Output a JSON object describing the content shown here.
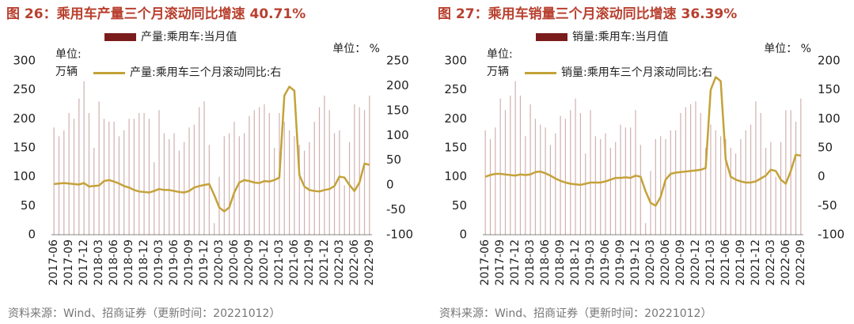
{
  "chart_data": [
    {
      "type": "combo",
      "title": "图 26：乘用车产量三个月滚动同比增速 40.71%",
      "y_label": [
        "单位:",
        "万辆"
      ],
      "y2_label": "单位：  %",
      "source": "资料来源：Wind、招商证券（更新时间：20221012）",
      "categories": [
        "2017-06",
        null,
        null,
        "2017-09",
        null,
        null,
        "2017-12",
        null,
        null,
        "2018-03",
        null,
        null,
        "2018-06",
        null,
        null,
        "2018-09",
        null,
        null,
        "2018-12",
        null,
        null,
        "2019-03",
        null,
        null,
        "2019-06",
        null,
        null,
        "2019-09",
        null,
        null,
        "2019-12",
        null,
        null,
        "2020-03",
        null,
        null,
        "2020-06",
        null,
        null,
        "2020-09",
        null,
        null,
        "2020-12",
        null,
        null,
        "2021-03",
        null,
        null,
        "2021-06",
        null,
        null,
        "2021-09",
        null,
        null,
        "2021-12",
        null,
        null,
        "2022-03",
        null,
        null,
        "2022-06",
        null,
        null,
        "2022-09"
      ],
      "series": [
        {
          "name": "产量:乘用车:当月值",
          "type": "bar",
          "color": "#7b1c1c",
          "values": [
            185,
            170,
            180,
            210,
            200,
            235,
            265,
            210,
            150,
            230,
            200,
            195,
            195,
            170,
            180,
            200,
            200,
            210,
            210,
            200,
            125,
            215,
            175,
            165,
            175,
            145,
            160,
            185,
            190,
            220,
            230,
            155,
            20,
            100,
            170,
            175,
            195,
            170,
            175,
            205,
            215,
            220,
            225,
            210,
            150,
            210,
            195,
            180,
            170,
            155,
            145,
            160,
            195,
            220,
            240,
            215,
            175,
            180,
            85,
            160,
            225,
            220,
            215,
            240
          ]
        },
        {
          "name": "产量:乘用车三个月滚动同比:右",
          "type": "line",
          "color": "#c4a239",
          "axis": "y2",
          "values": [
            2,
            3,
            4,
            3,
            2,
            1,
            4,
            -3,
            -2,
            -1,
            8,
            10,
            7,
            3,
            -2,
            -5,
            -10,
            -13,
            -14,
            -15,
            -12,
            -8,
            -10,
            -10,
            -12,
            -14,
            -15,
            -12,
            -5,
            -2,
            0,
            2,
            -20,
            -45,
            -53,
            -45,
            -15,
            5,
            10,
            8,
            5,
            4,
            8,
            7,
            10,
            15,
            180,
            198,
            190,
            20,
            -3,
            -10,
            -12,
            -13,
            -10,
            -8,
            -2,
            17,
            15,
            0,
            -12,
            5,
            43,
            40.71
          ]
        }
      ],
      "ylim": [
        0,
        300
      ],
      "yticks": [
        0,
        50,
        100,
        150,
        200,
        250,
        300
      ],
      "y2lim": [
        -100,
        250
      ],
      "y2ticks": [
        -100,
        -50,
        0,
        50,
        100,
        150,
        200,
        250
      ]
    },
    {
      "type": "combo",
      "title": "图 27：乘用车销量三个月滚动同比增速 36.39%",
      "y_label": [
        "单位:",
        "万辆"
      ],
      "y2_label": "单位：  %",
      "source": "资料来源：Wind、招商证券（更新时间：20221012）",
      "categories": [
        "2017-06",
        null,
        null,
        "2017-09",
        null,
        null,
        "2017-12",
        null,
        null,
        "2018-03",
        null,
        null,
        "2018-06",
        null,
        null,
        "2018-09",
        null,
        null,
        "2018-12",
        null,
        null,
        "2019-03",
        null,
        null,
        "2019-06",
        null,
        null,
        "2019-09",
        null,
        null,
        "2019-12",
        null,
        null,
        "2020-03",
        null,
        null,
        "2020-06",
        null,
        null,
        "2020-09",
        null,
        null,
        "2020-12",
        null,
        null,
        "2021-03",
        null,
        null,
        "2021-06",
        null,
        null,
        "2021-09",
        null,
        null,
        "2021-12",
        null,
        null,
        "2022-03",
        null,
        null,
        "2022-06",
        null,
        null,
        "2022-09"
      ],
      "series": [
        {
          "name": "销量:乘用车:当月值",
          "type": "bar",
          "color": "#7b1c1c",
          "values": [
            180,
            165,
            185,
            235,
            215,
            240,
            265,
            240,
            170,
            225,
            200,
            190,
            185,
            155,
            175,
            205,
            200,
            215,
            235,
            210,
            140,
            215,
            170,
            165,
            175,
            150,
            160,
            190,
            185,
            185,
            215,
            155,
            20,
            110,
            165,
            170,
            165,
            180,
            180,
            210,
            220,
            225,
            230,
            210,
            150,
            190,
            180,
            170,
            165,
            150,
            140,
            165,
            180,
            190,
            230,
            210,
            150,
            160,
            100,
            160,
            215,
            215,
            195,
            235
          ]
        },
        {
          "name": "销量:乘用车三个月滚动同比:右",
          "type": "line",
          "color": "#c4a239",
          "axis": "y2",
          "values": [
            0,
            3,
            5,
            5,
            4,
            3,
            2,
            4,
            3,
            4,
            8,
            9,
            6,
            2,
            -3,
            -7,
            -10,
            -12,
            -13,
            -14,
            -12,
            -10,
            -10,
            -10,
            -8,
            -5,
            -2,
            -2,
            -1,
            -2,
            2,
            0,
            -25,
            -45,
            -50,
            -35,
            -5,
            5,
            7,
            8,
            9,
            10,
            11,
            12,
            15,
            150,
            172,
            165,
            30,
            0,
            -5,
            -8,
            -10,
            -10,
            -8,
            -3,
            2,
            12,
            10,
            -5,
            -12,
            10,
            38,
            36.39
          ]
        }
      ],
      "ylim": [
        0,
        300
      ],
      "yticks": [
        0,
        50,
        100,
        150,
        200,
        250,
        300
      ],
      "y2lim": [
        -100,
        200
      ],
      "y2ticks": [
        -100,
        -50,
        0,
        50,
        100,
        150,
        200
      ]
    }
  ]
}
